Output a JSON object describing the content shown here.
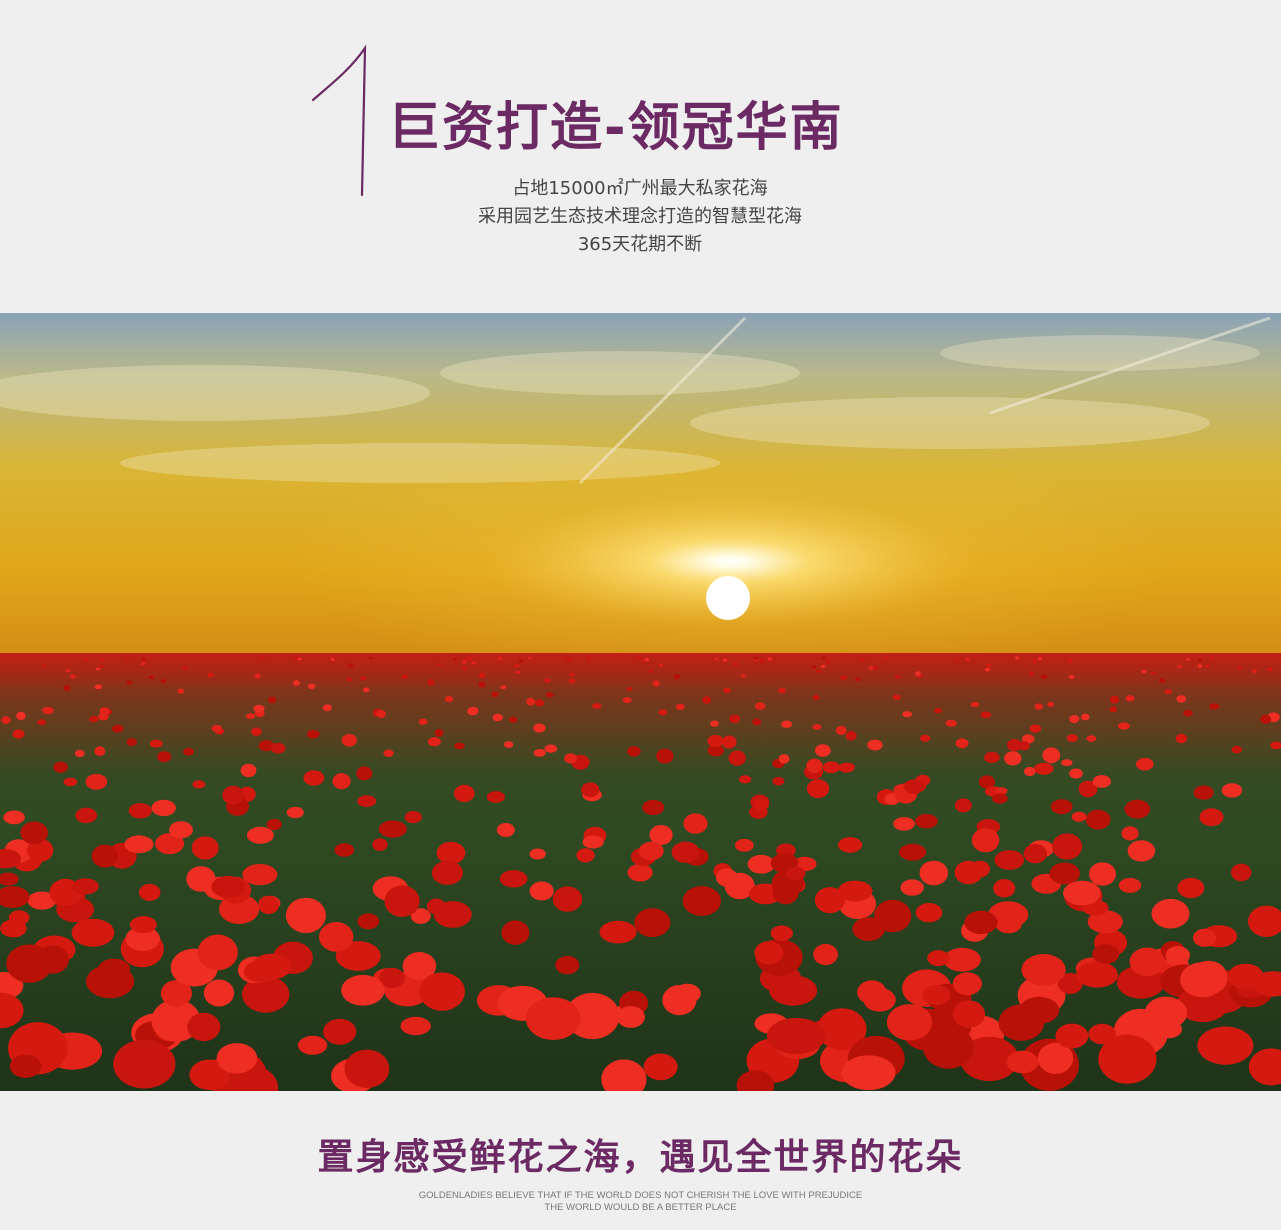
{
  "section": {
    "number": "1",
    "title": "巨资打造-领冠华南",
    "description": [
      "占地15000㎡广州最大私家花海",
      "采用园艺生态技术理念打造的智慧型花海",
      "365天花期不断"
    ]
  },
  "photo": {
    "subject": "poppy-field-sunset"
  },
  "slogan": "置身感受鲜花之海，遇见全世界的花朵",
  "english": [
    "GOLDENLADIES BELIEVE THAT IF THE WORLD DOES NOT CHERISH THE LOVE WITH PREJUDICE",
    "THE WORLD WOULD BE A BETTER PLACE"
  ],
  "colors": {
    "accent": "#6b2a63",
    "background": "#efefef"
  }
}
